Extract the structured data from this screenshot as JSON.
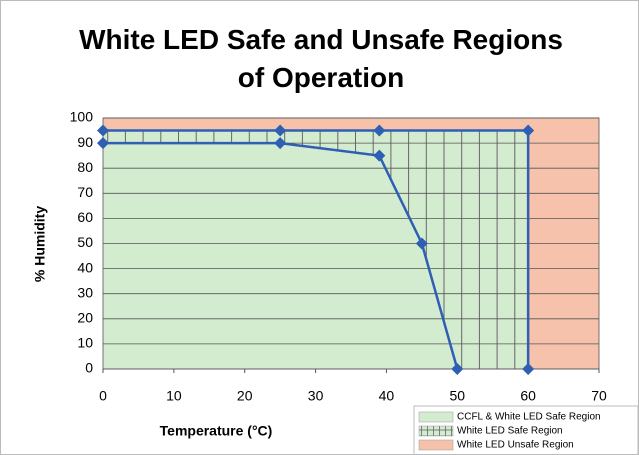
{
  "chart_data": {
    "type": "line",
    "title": "White LED Safe and Unsafe Regions of Operation",
    "x_label": "Temperature (°C)",
    "y_label": "% Humidity",
    "series": [
      {
        "color": "#2f5fb3",
        "x": [
          0,
          25,
          39,
          45,
          50
        ],
        "values": [
          90,
          90,
          85,
          50,
          0
        ]
      },
      {
        "color": "#2f5fb3",
        "x": [
          0,
          25,
          39,
          60,
          60
        ],
        "values": [
          95,
          95,
          95,
          95,
          0
        ]
      }
    ],
    "regions": [
      {
        "name": "CCFL & White LED Safe Region",
        "color": "#d3ecd0"
      },
      {
        "name": "White LED Safe Region",
        "color": "#d3ecd0"
      },
      {
        "name": "White LED Unsafe Region",
        "color": "#f6c2ab"
      }
    ],
    "xlim": [
      0,
      70
    ],
    "xticks": [
      0,
      10,
      20,
      30,
      40,
      50,
      60,
      70
    ],
    "ylim": [
      0,
      100
    ],
    "yticks": [
      0,
      10,
      20,
      30,
      40,
      50,
      60,
      70,
      80,
      90,
      100
    ],
    "grid": true
  }
}
